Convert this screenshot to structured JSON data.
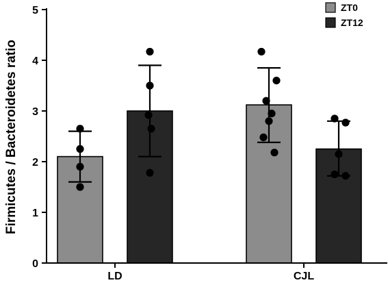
{
  "chart_data": {
    "type": "bar",
    "title": "",
    "xlabel": "",
    "ylabel": "Firmicutes / Bacteroidetes ratio",
    "ylim": [
      0,
      5
    ],
    "yticks": [
      "0",
      "1",
      "2",
      "3",
      "4",
      "5"
    ],
    "categories": [
      "LD",
      "CJL"
    ],
    "grid": false,
    "legend_position": "top-right",
    "series": [
      {
        "name": "ZT0",
        "color": "#8c8c8c",
        "values": [
          2.1,
          3.12
        ],
        "err_low": [
          1.6,
          2.38
        ],
        "err_high": [
          2.6,
          3.85
        ],
        "points": [
          [
            2.65,
            2.25,
            1.9,
            1.5
          ],
          [
            4.17,
            3.6,
            3.2,
            2.95,
            2.8,
            2.48,
            2.18
          ]
        ]
      },
      {
        "name": "ZT12",
        "color": "#262626",
        "values": [
          3.0,
          2.25
        ],
        "err_low": [
          2.1,
          1.72
        ],
        "err_high": [
          3.9,
          2.8
        ],
        "points": [
          [
            4.17,
            3.5,
            2.92,
            2.65,
            1.78
          ],
          [
            2.85,
            2.77,
            2.15,
            1.75,
            1.72
          ]
        ]
      }
    ]
  }
}
